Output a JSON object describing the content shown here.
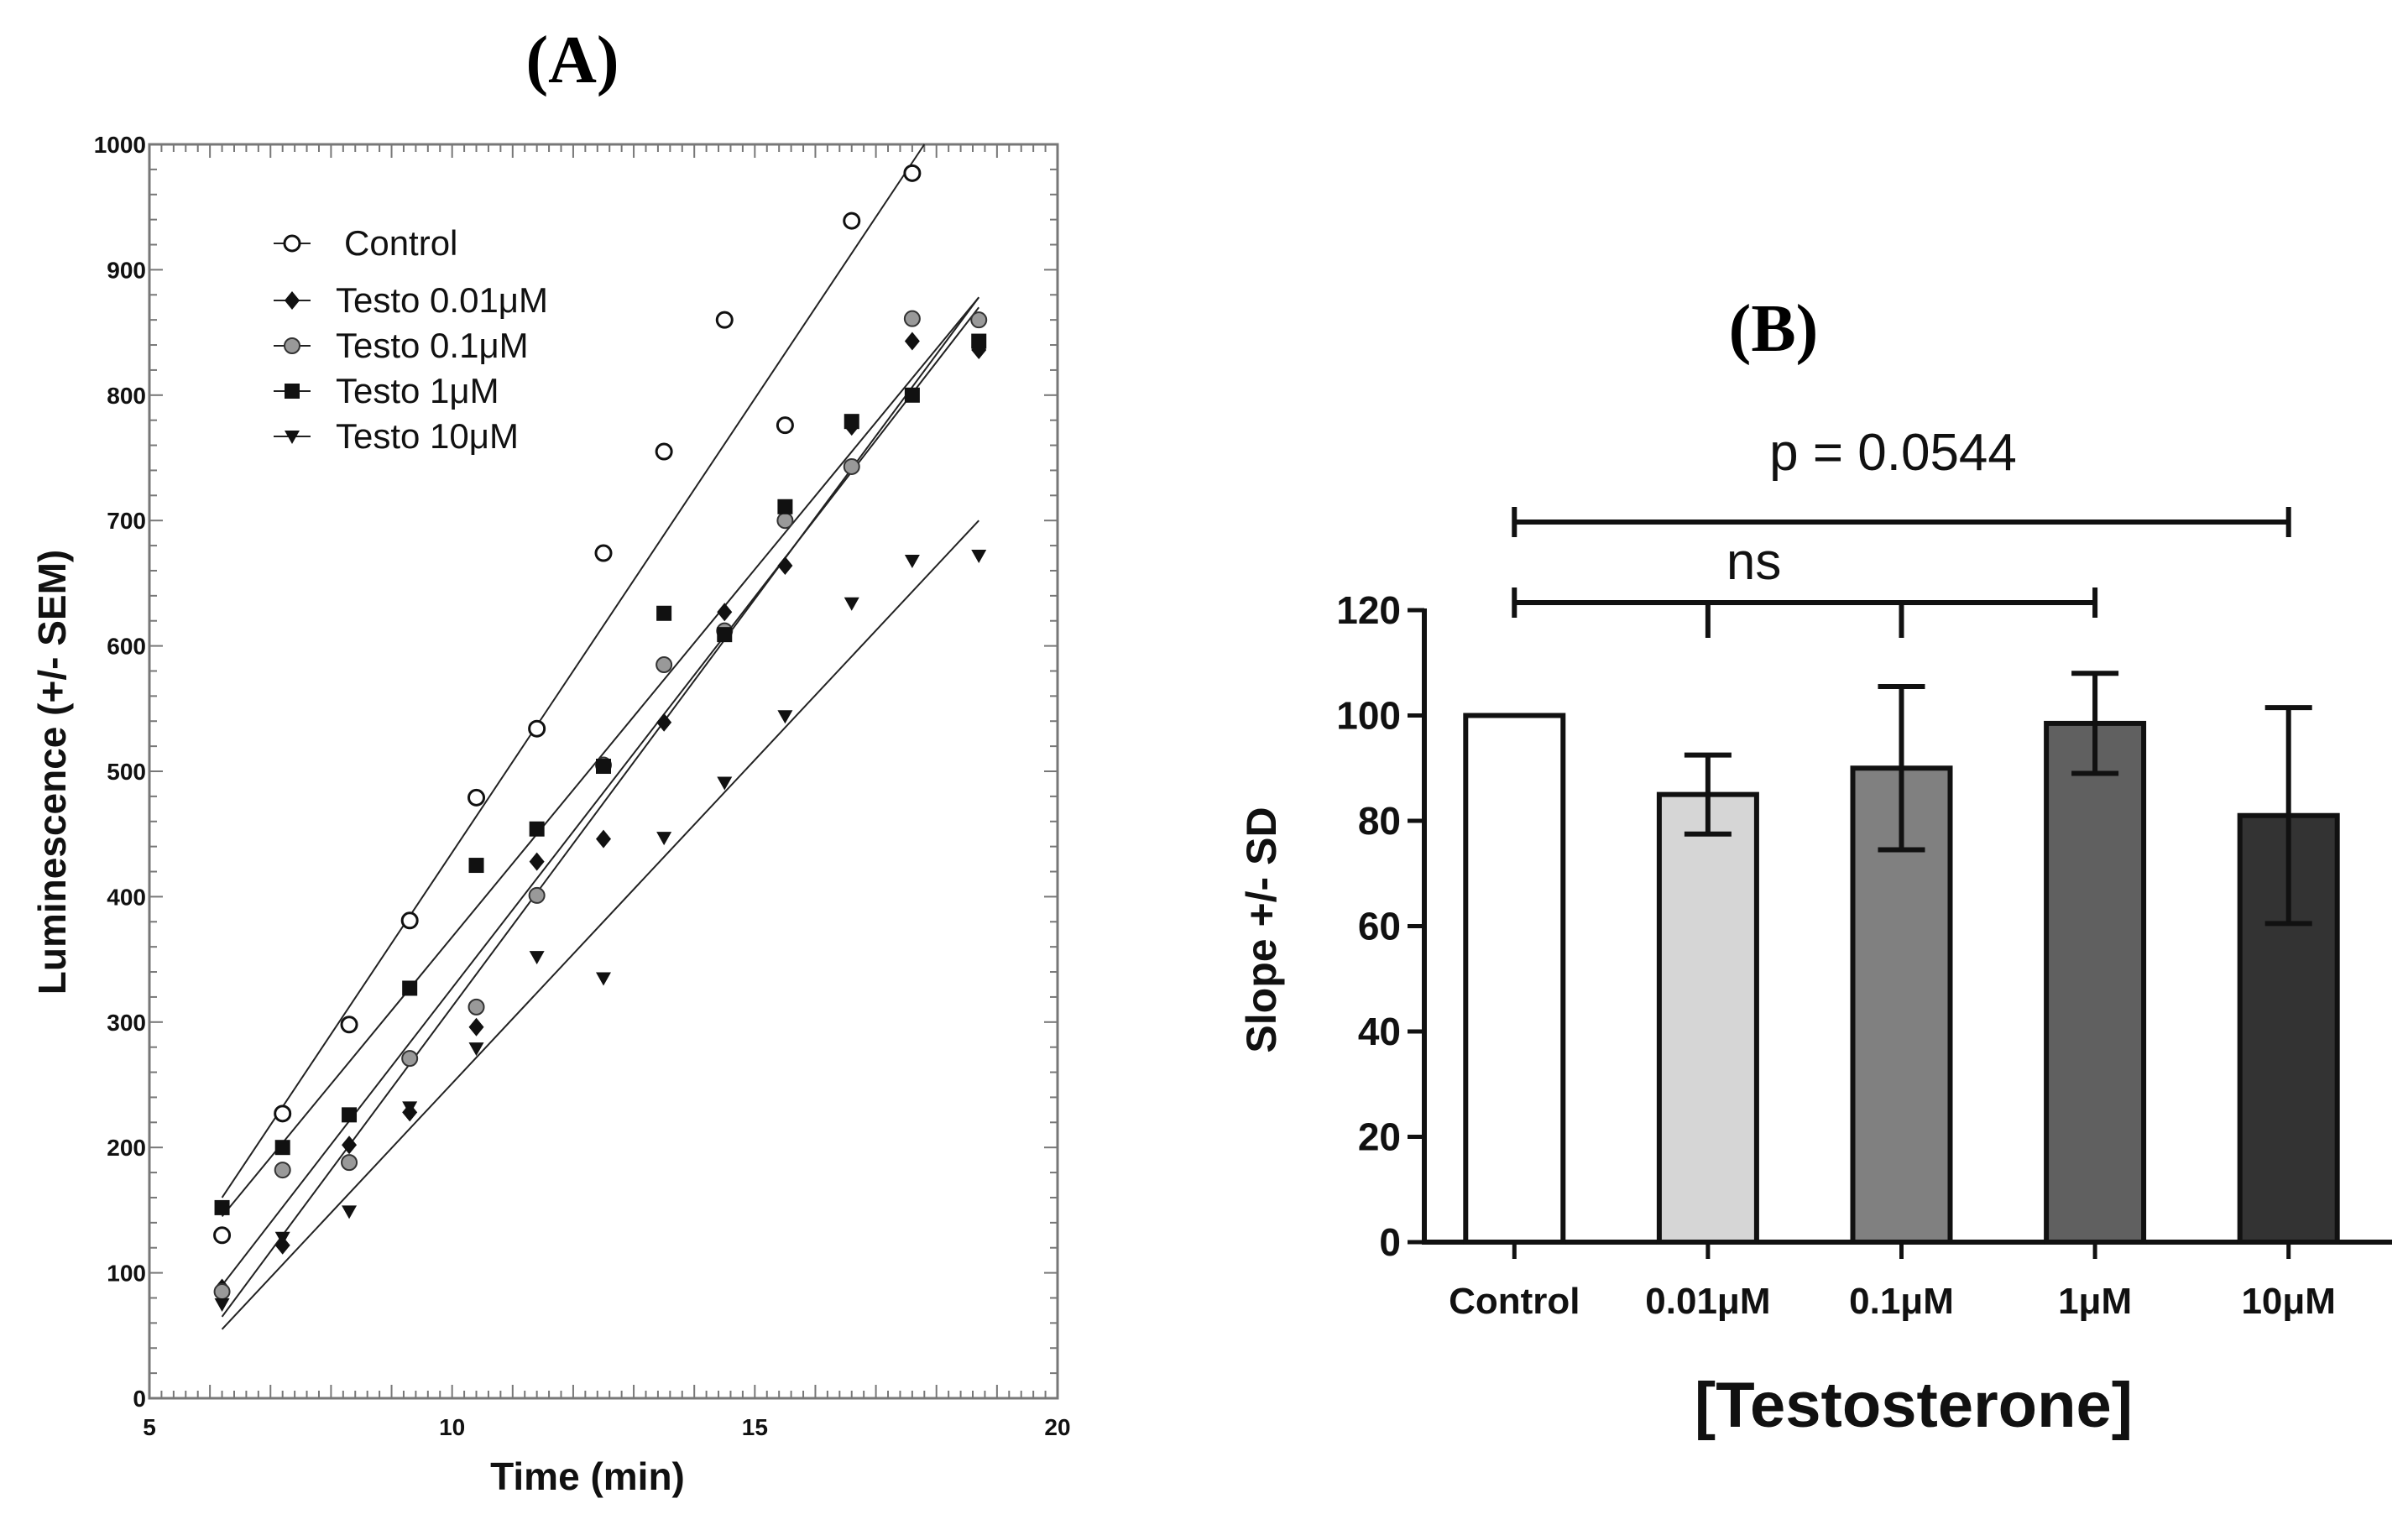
{
  "chart_data": [
    {
      "panel_label": "(A)",
      "type": "scatter",
      "xlabel": "Time (min)",
      "ylabel": "Luminescence (+/- SEM)",
      "xlim": [
        5,
        20
      ],
      "ylim": [
        0,
        1000
      ],
      "xticks": [
        "5",
        "10",
        "15",
        "20"
      ],
      "yticks": [
        "0",
        "100",
        "200",
        "300",
        "400",
        "500",
        "600",
        "700",
        "800",
        "900",
        "1000"
      ],
      "legend_position": "top-left",
      "series": [
        {
          "name": "Control",
          "marker": "open-circle",
          "x": [
            6.2,
            7.2,
            8.3,
            9.3,
            10.4,
            11.4,
            12.5,
            13.5,
            14.5,
            15.5,
            16.6,
            17.6
          ],
          "y": [
            130,
            227,
            298,
            381,
            479,
            534,
            674,
            755,
            860,
            776,
            939,
            977
          ],
          "fit": [
            [
              6.2,
              160
            ],
            [
              17.8,
              1000
            ]
          ]
        },
        {
          "name": "Testo 0.01μM",
          "marker": "diamond",
          "x": [
            6.2,
            7.2,
            8.3,
            9.3,
            10.4,
            11.4,
            12.5,
            13.5,
            14.5,
            15.5,
            16.6,
            17.6,
            18.7
          ],
          "y": [
            88,
            122,
            202,
            228,
            296,
            428,
            446,
            539,
            627,
            664,
            775,
            843,
            836
          ],
          "fit": [
            [
              6.2,
              65
            ],
            [
              18.7,
              878
            ]
          ]
        },
        {
          "name": "Testo 0.1μM",
          "marker": "gray-circle",
          "x": [
            6.2,
            7.2,
            8.3,
            9.3,
            10.4,
            11.4,
            12.5,
            13.5,
            14.5,
            15.5,
            16.6,
            17.6,
            18.7
          ],
          "y": [
            85,
            182,
            188,
            271,
            312,
            401,
            505,
            585,
            612,
            700,
            743,
            861,
            860
          ],
          "fit": [
            [
              6.2,
              90
            ],
            [
              18.7,
              870
            ]
          ]
        },
        {
          "name": "Testo 1μM",
          "marker": "square",
          "x": [
            6.2,
            7.2,
            8.3,
            9.3,
            10.4,
            11.4,
            12.5,
            13.5,
            14.5,
            15.5,
            16.6,
            17.6,
            18.7
          ],
          "y": [
            152,
            200,
            226,
            327,
            425,
            454,
            504,
            626,
            609,
            711,
            779,
            800,
            843
          ],
          "fit": [
            [
              6.2,
              145
            ],
            [
              18.7,
              878
            ]
          ]
        },
        {
          "name": "Testo 10μM",
          "marker": "down-triangle",
          "x": [
            6.2,
            7.2,
            8.3,
            9.3,
            10.4,
            11.4,
            12.5,
            13.5,
            14.5,
            15.5,
            16.6,
            17.6,
            18.7
          ],
          "y": [
            75,
            128,
            149,
            232,
            279,
            352,
            335,
            447,
            491,
            544,
            634,
            668,
            672
          ],
          "fit": [
            [
              6.2,
              55
            ],
            [
              18.7,
              700
            ]
          ]
        }
      ]
    },
    {
      "panel_label": "(B)",
      "type": "bar",
      "xlabel": "[Testosterone]",
      "ylabel": "Slope +/- SD",
      "ylim": [
        0,
        120
      ],
      "yticks": [
        "0",
        "20",
        "40",
        "60",
        "80",
        "100",
        "120"
      ],
      "categories": [
        "Control",
        "0.01μM",
        "0.1μM",
        "1μM",
        "10μM"
      ],
      "values": [
        100,
        85,
        90,
        98.5,
        81
      ],
      "errors": [
        0,
        7.5,
        15.5,
        9.5,
        20.5
      ],
      "colors": [
        "#ffffff",
        "#d6d6d6",
        "#808080",
        "#606060",
        "#333333"
      ],
      "annotations": [
        {
          "text": "p = 0.0544",
          "from": "Control",
          "to": "10μM"
        },
        {
          "text": "ns",
          "from": "Control",
          "to": "1μM",
          "ticks": [
            "0.01μM",
            "0.1μM"
          ]
        }
      ]
    }
  ]
}
